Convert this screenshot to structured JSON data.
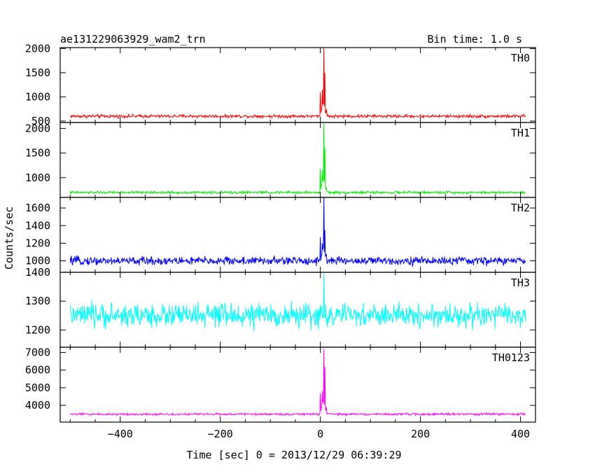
{
  "header": {
    "title": "ae131229063929_wam2_trn",
    "bin_time": "Bin time: 1.0 s"
  },
  "chart_data": {
    "type": "line",
    "title": "ae131229063929_wam2_trn",
    "subtitle": "Bin time: 1.0 s",
    "xlabel": "Time [sec] 0 = 2013/12/29 06:39:29",
    "ylabel": "Counts/sec",
    "xlim": [
      -520,
      430
    ],
    "xticks": [
      -400,
      -200,
      0,
      200,
      400
    ],
    "x_range": [
      -500,
      410
    ],
    "panels": [
      {
        "name": "TH0",
        "color": "#ff0000",
        "ylim": [
          470,
          2020
        ],
        "yticks": [
          500,
          1000,
          1500,
          2000
        ],
        "baseline": 600,
        "noise": 50,
        "peak": [
          {
            "x": 0,
            "y": 1100
          },
          {
            "x": 4,
            "y": 1150
          },
          {
            "x": 7,
            "y": 2020
          },
          {
            "x": 9,
            "y": 1500
          },
          {
            "x": 12,
            "y": 750
          }
        ]
      },
      {
        "name": "TH1",
        "color": "#00ee00",
        "ylim": [
          600,
          2120
        ],
        "yticks": [
          1000,
          1500,
          2000
        ],
        "baseline": 700,
        "noise": 40,
        "peak": [
          {
            "x": 0,
            "y": 1180
          },
          {
            "x": 4,
            "y": 1150
          },
          {
            "x": 7,
            "y": 2100
          },
          {
            "x": 9,
            "y": 1600
          },
          {
            "x": 12,
            "y": 800
          }
        ]
      },
      {
        "name": "TH2",
        "color": "#0000ff",
        "ylim": [
          870,
          1720
        ],
        "yticks": [
          1000,
          1200,
          1400,
          1600
        ],
        "baseline": 1000,
        "noise": 70,
        "peak": [
          {
            "x": 0,
            "y": 1270
          },
          {
            "x": 4,
            "y": 1200
          },
          {
            "x": 7,
            "y": 1720
          },
          {
            "x": 9,
            "y": 1350
          },
          {
            "x": 12,
            "y": 1080
          }
        ]
      },
      {
        "name": "TH3",
        "color": "#00ffff",
        "ylim": [
          1140,
          1400
        ],
        "yticks": [
          1200,
          1300,
          1400
        ],
        "baseline": 1250,
        "noise": 60,
        "peak": [
          {
            "x": 7,
            "y": 1395
          }
        ]
      },
      {
        "name": "TH0123",
        "color": "#ff00ff",
        "ylim": [
          3050,
          7300
        ],
        "yticks": [
          4000,
          5000,
          6000,
          7000
        ],
        "baseline": 3500,
        "noise": 90,
        "peak": [
          {
            "x": 0,
            "y": 4700
          },
          {
            "x": 4,
            "y": 4800
          },
          {
            "x": 7,
            "y": 7200
          },
          {
            "x": 9,
            "y": 6200
          },
          {
            "x": 12,
            "y": 3900
          }
        ]
      }
    ]
  }
}
